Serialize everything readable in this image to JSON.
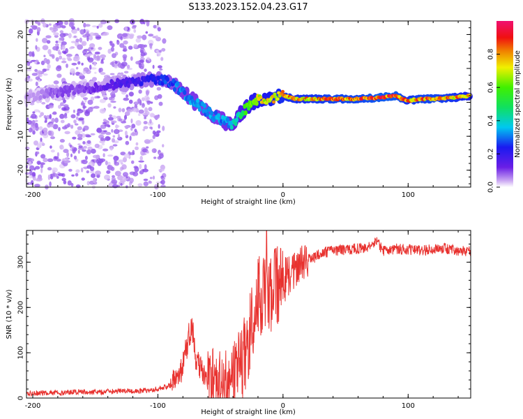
{
  "title": "S133.2023.152.04.23.G17",
  "colors": {
    "snr_line": "#e8322f",
    "axis": "#000000"
  },
  "chart_data": [
    {
      "type": "heatmap",
      "xlabel": "Height of straight line (km)",
      "ylabel": "Frequency (Hz)",
      "xlim": [
        -205,
        150
      ],
      "ylim": [
        -25,
        24
      ],
      "x_ticks": [
        -200,
        -100,
        0,
        100
      ],
      "y_ticks": [
        -20,
        -10,
        0,
        10,
        20
      ],
      "colorbar": {
        "label": "Normalized spectral amplitude",
        "range": [
          0,
          1
        ],
        "ticks": [
          0.0,
          0.2,
          0.4,
          0.6,
          0.8
        ],
        "colormap": "rainbow (violet → blue → cyan → green → yellow → red → magenta)"
      },
      "ridge": {
        "x": [
          -200,
          -180,
          -160,
          -140,
          -120,
          -100,
          -90,
          -80,
          -70,
          -60,
          -50,
          -40,
          -35,
          -30,
          -25,
          -20,
          -10,
          0,
          10,
          20,
          40,
          60,
          80,
          90,
          95,
          100,
          110,
          120,
          140,
          150
        ],
        "frequency": [
          2,
          3,
          4,
          5,
          6,
          7,
          6,
          3,
          0,
          -3,
          -5,
          -7,
          -4,
          -2,
          0,
          1,
          1,
          2,
          1,
          1,
          1,
          1,
          1.5,
          2,
          1,
          0.5,
          1,
          1,
          1.5,
          2
        ],
        "amplitude": [
          0.05,
          0.1,
          0.1,
          0.15,
          0.2,
          0.25,
          0.3,
          0.35,
          0.35,
          0.35,
          0.35,
          0.4,
          0.5,
          0.6,
          0.7,
          0.75,
          0.8,
          0.85,
          0.85,
          0.85,
          0.9,
          0.9,
          0.95,
          0.95,
          0.9,
          0.85,
          0.9,
          0.9,
          0.85,
          0.8
        ]
      }
    },
    {
      "type": "line",
      "xlabel": "Height of straight line (km)",
      "ylabel": "SNR (10 * v/v)",
      "xlim": [
        -205,
        150
      ],
      "ylim": [
        0,
        370
      ],
      "x_ticks": [
        -200,
        -100,
        0,
        100
      ],
      "y_ticks": [
        0,
        100,
        200,
        300
      ],
      "series": [
        {
          "x": [
            -205,
            -190,
            -180,
            -170,
            -160,
            -150,
            -140,
            -130,
            -120,
            -110,
            -100,
            -90,
            -85,
            -80,
            -78,
            -75,
            -72,
            -70,
            -65,
            -60,
            -55,
            -50,
            -45,
            -40,
            -35,
            -30,
            -25,
            -20,
            -15,
            -10,
            -5,
            0,
            5,
            10,
            15,
            20,
            25,
            30,
            40,
            50,
            60,
            70,
            75,
            80,
            90,
            100,
            110,
            120,
            130,
            140,
            150
          ],
          "y": [
            10,
            12,
            12,
            13,
            14,
            13,
            14,
            15,
            15,
            16,
            20,
            28,
            40,
            70,
            100,
            140,
            150,
            90,
            60,
            45,
            40,
            40,
            40,
            40,
            60,
            100,
            170,
            220,
            240,
            230,
            250,
            260,
            270,
            285,
            300,
            305,
            310,
            320,
            325,
            328,
            330,
            335,
            345,
            325,
            330,
            328,
            325,
            328,
            330,
            326,
            325
          ]
        }
      ]
    }
  ]
}
